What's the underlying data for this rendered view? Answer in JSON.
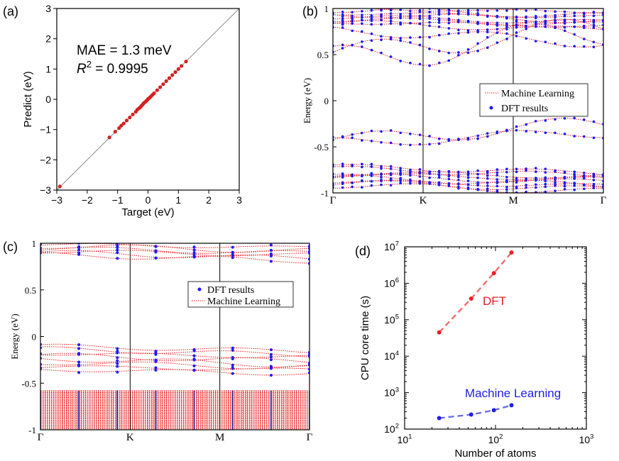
{
  "chart_data": [
    {
      "panel": "(a)",
      "type": "scatter",
      "xlabel": "Target (eV)",
      "ylabel": "Predict (eV)",
      "xlim": [
        -3,
        3
      ],
      "ylim": [
        -3,
        3
      ],
      "xticks": [
        "−3",
        "−2",
        "−1",
        "0",
        "1",
        "2",
        "3"
      ],
      "yticks": [
        "−3",
        "−2",
        "−1",
        "0",
        "1",
        "2",
        "3"
      ],
      "annotations": {
        "mae": "MAE = 1.3 meV",
        "r2_label": "R",
        "r2_sup": "2",
        "r2_value": " = 0.9995"
      },
      "points": [
        [
          -2.9,
          -2.88
        ],
        [
          -1.27,
          -1.26
        ],
        [
          -1.08,
          -1.07
        ],
        [
          -0.95,
          -0.95
        ],
        [
          -0.88,
          -0.87
        ],
        [
          -0.8,
          -0.8
        ],
        [
          -0.7,
          -0.7
        ],
        [
          -0.6,
          -0.6
        ],
        [
          -0.5,
          -0.5
        ],
        [
          -0.4,
          -0.41
        ],
        [
          -0.35,
          -0.34
        ],
        [
          -0.3,
          -0.3
        ],
        [
          -0.26,
          -0.27
        ],
        [
          -0.22,
          -0.22
        ],
        [
          -0.18,
          -0.18
        ],
        [
          -0.15,
          -0.14
        ],
        [
          -0.12,
          -0.11
        ],
        [
          -0.08,
          -0.08
        ],
        [
          -0.05,
          -0.05
        ],
        [
          -0.02,
          -0.02
        ],
        [
          0.0,
          0.01
        ],
        [
          0.03,
          0.03
        ],
        [
          0.06,
          0.06
        ],
        [
          0.1,
          0.1
        ],
        [
          0.15,
          0.15
        ],
        [
          0.2,
          0.2
        ],
        [
          0.3,
          0.3
        ],
        [
          0.4,
          0.4
        ],
        [
          0.5,
          0.5
        ],
        [
          0.6,
          0.6
        ],
        [
          0.7,
          0.7
        ],
        [
          0.8,
          0.8
        ],
        [
          0.9,
          0.9
        ],
        [
          1.0,
          1.0
        ],
        [
          1.1,
          1.1
        ],
        [
          1.25,
          1.25
        ]
      ]
    },
    {
      "panel": "(b)",
      "type": "line",
      "ylabel": "Energy (eV)",
      "ylim": [
        -1,
        1
      ],
      "yticks": [
        "-1",
        "-0.5",
        "0",
        "0.5",
        "1"
      ],
      "xticks": [
        "Γ",
        "K",
        "M",
        "Γ"
      ],
      "legend": [
        "Machine Learning",
        "DFT results"
      ],
      "legend_position": "middle-right",
      "series": [
        {
          "name": "Machine Learning",
          "color": "#e81c1c",
          "style": "dotted-line"
        },
        {
          "name": "DFT results",
          "color": "#1a1aff",
          "style": "points"
        }
      ]
    },
    {
      "panel": "(c)",
      "type": "line",
      "ylabel": "Energy (eV)",
      "ylim": [
        -1,
        1
      ],
      "yticks": [
        "-1",
        "-0.5",
        "0",
        "0.5",
        "1"
      ],
      "xticks": [
        "Γ",
        "K",
        "M",
        "Γ"
      ],
      "legend": [
        "DFT results",
        "Machine Learning"
      ],
      "legend_position": "upper-right",
      "series": [
        {
          "name": "DFT results",
          "color": "#1a1aff",
          "style": "points"
        },
        {
          "name": "Machine Learning",
          "color": "#e81c1c",
          "style": "dotted-line"
        }
      ]
    },
    {
      "panel": "(d)",
      "type": "line",
      "xscale": "log",
      "yscale": "log",
      "xlabel": "Number of atoms",
      "ylabel": "CPU core time (s)",
      "xlim": [
        10,
        1000
      ],
      "ylim": [
        100,
        10000000
      ],
      "xticks": [
        {
          "base": "10",
          "exp": "1"
        },
        {
          "base": "10",
          "exp": "2"
        },
        {
          "base": "10",
          "exp": "3"
        }
      ],
      "yticks": [
        {
          "base": "10",
          "exp": "2"
        },
        {
          "base": "10",
          "exp": "3"
        },
        {
          "base": "10",
          "exp": "4"
        },
        {
          "base": "10",
          "exp": "5"
        },
        {
          "base": "10",
          "exp": "6"
        },
        {
          "base": "10",
          "exp": "7"
        }
      ],
      "series": [
        {
          "name": "DFT",
          "color": "#e82020",
          "x": [
            24,
            54,
            96,
            150
          ],
          "y": [
            45000,
            380000,
            1900000,
            7000000
          ]
        },
        {
          "name": "Machine Learning",
          "color": "#2020e8",
          "x": [
            24,
            54,
            96,
            150
          ],
          "y": [
            200,
            250,
            330,
            450
          ]
        }
      ]
    }
  ]
}
